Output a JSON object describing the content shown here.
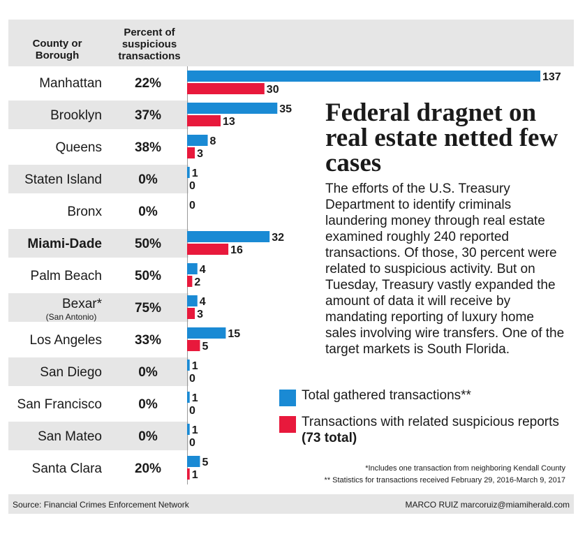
{
  "chart_data": {
    "type": "bar",
    "title": "Federal dragnet on real estate netted few cases",
    "body": "The efforts of the U.S. Treasury Department to identify criminals laundering money through real estate examined roughly 240 reported transactions. Of those, 30 percent were related to suspicious activity. But on Tuesday, Treasury vastly expanded the amount of data it will receive by mandating reporting of luxury home sales involving wire transfers. One of the target markets is South Florida.",
    "column_headers": {
      "county": "County or\nBorough",
      "percent": "Percent of\nsuspicious\ntransactions"
    },
    "categories": [
      "Manhattan",
      "Brooklyn",
      "Queens",
      "Staten Island",
      "Bronx",
      "Miami-Dade",
      "Palm Beach",
      "Bexar*",
      "Los Angeles",
      "San Diego",
      "San Francisco",
      "San Mateo",
      "Santa Clara"
    ],
    "category_notes": [
      "",
      "",
      "",
      "",
      "",
      "",
      "",
      "(San Antonio)",
      "",
      "",
      "",
      "",
      ""
    ],
    "percent_suspicious": [
      "22%",
      "37%",
      "38%",
      "0%",
      "0%",
      "50%",
      "50%",
      "75%",
      "33%",
      "0%",
      "0%",
      "0%",
      "20%"
    ],
    "series": [
      {
        "name": "Total gathered transactions**",
        "color": "#1a8ad4",
        "values": [
          137,
          35,
          8,
          1,
          0,
          32,
          4,
          4,
          15,
          1,
          1,
          1,
          5
        ]
      },
      {
        "name": "Transactions with related suspicious reports",
        "color": "#e8193c",
        "values": [
          30,
          13,
          3,
          0,
          0,
          16,
          2,
          3,
          5,
          0,
          0,
          0,
          1
        ]
      }
    ],
    "legend": {
      "total_label": "Total gathered transactions**",
      "suspicious_label": "Transactions with related suspicious reports",
      "suspicious_total": "(73 total)",
      "placement": "bottom-right"
    },
    "footnotes": [
      "*Includes one transaction from neighboring Kendall County",
      "** Statistics for transactions received February 29, 2016-March 9, 2017"
    ],
    "source": "Source: Financial Crimes Enforcement Network",
    "credit": "MARCO RUIZ marcoruiz@miamiherald.com",
    "xlim": [
      0,
      137
    ],
    "grid": false
  }
}
